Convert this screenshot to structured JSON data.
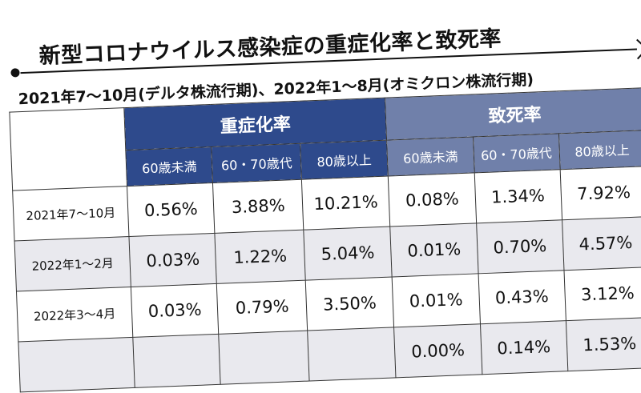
{
  "title": "新型コロナウイルス感染症の重症化率と致死率",
  "subtitle": "2021年7〜10月(デルタ株流行期)、2022年1〜8月(オミクロン株流行期)",
  "groups": [
    "重症化率",
    "致死率"
  ],
  "subheaders": [
    "60歳未満",
    "60・70歳代",
    "80歳以上",
    "60歳未満",
    "60・70歳代",
    "80歳以上"
  ],
  "rows": [
    {
      "label": "2021年7〜10月",
      "values": [
        "0.56%",
        "3.88%",
        "10.21%",
        "0.08%",
        "1.34%",
        "7.92%"
      ]
    },
    {
      "label": "2022年1〜2月",
      "values": [
        "0.03%",
        "1.22%",
        "5.04%",
        "0.01%",
        "0.70%",
        "4.57%"
      ]
    },
    {
      "label": "2022年3〜4月",
      "values": [
        "0.03%",
        "0.79%",
        "3.50%",
        "0.01%",
        "0.43%",
        "3.12%"
      ]
    },
    {
      "label": "",
      "values": [
        "",
        "",
        "",
        "0.00%",
        "0.14%",
        "1.53%"
      ]
    }
  ],
  "colors": {
    "group1": "#2e4a8c",
    "group2": "#7080aa",
    "stripe": "#e9e9ee"
  }
}
